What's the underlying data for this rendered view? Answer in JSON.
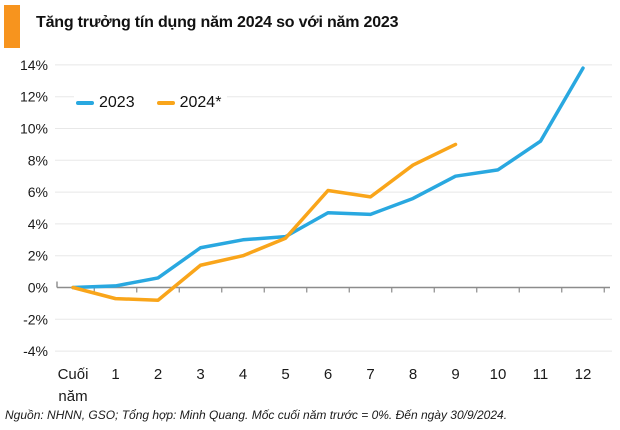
{
  "page": {
    "title": "Tăng trưởng tín dụng năm 2024 so với năm 2023",
    "footer": "Nguồn: NHNN, GSO; Tổng hợp: Minh Quang. Mốc cuối năm trước = 0%. Đến ngày 30/9/2024.",
    "accent_color": "#F7941E"
  },
  "chart_data": {
    "type": "line",
    "title": "Tăng trưởng tín dụng năm 2024 so với năm 2023",
    "categories": [
      "Cuối năm",
      "1",
      "2",
      "3",
      "4",
      "5",
      "6",
      "7",
      "8",
      "9",
      "10",
      "11",
      "12"
    ],
    "series": [
      {
        "name": "2023",
        "color": "#29A8E0",
        "values": [
          0,
          0.1,
          0.6,
          2.5,
          3.0,
          3.2,
          4.7,
          4.6,
          5.6,
          7.0,
          7.4,
          9.2,
          13.8
        ]
      },
      {
        "name": "2024*",
        "color": "#F9A51A",
        "values": [
          0,
          -0.7,
          -0.8,
          1.4,
          2.0,
          3.1,
          6.1,
          5.7,
          7.7,
          9.0
        ]
      }
    ],
    "xlabel": "",
    "ylabel": "",
    "ylim": [
      -4,
      14
    ],
    "y_ticks": [
      14,
      12,
      10,
      8,
      6,
      4,
      2,
      0,
      -2,
      -4
    ],
    "y_tick_labels": [
      "14%",
      "12%",
      "10%",
      "8%",
      "6%",
      "4%",
      "2%",
      "0%",
      "-2%",
      "-4%"
    ],
    "grid": "horizontal",
    "zero_line": true,
    "legend_position": "top-left",
    "grid_color": "#e8e8e8",
    "axis_color": "#8c8c8c",
    "label_color": "#1a1a1a"
  }
}
